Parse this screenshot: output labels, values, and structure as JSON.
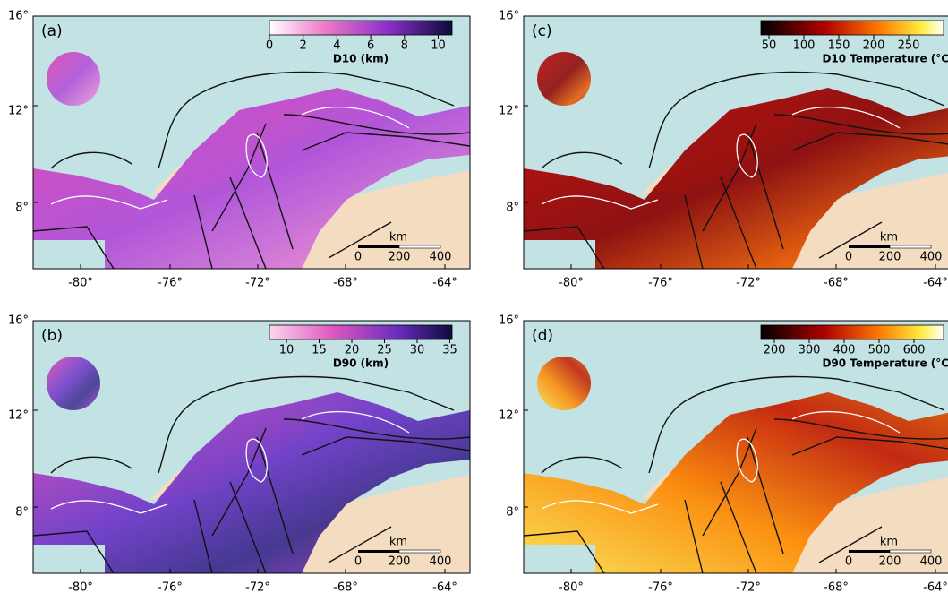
{
  "panels": [
    {
      "label": "(a)",
      "colorbar": {
        "title": "D10 (km)",
        "ticks": [
          "0",
          "2",
          "4",
          "6",
          "8",
          "10"
        ]
      },
      "lat_ticks": [
        "16°",
        "12°",
        "8°"
      ],
      "lon_ticks": [
        "-80°",
        "-76°",
        "-72°",
        "-68°",
        "-64°"
      ],
      "scale_bar": {
        "unit": "km",
        "ticks": [
          "0",
          "200",
          "400"
        ]
      }
    },
    {
      "label": "(b)",
      "colorbar": {
        "title": "D90 (km)",
        "ticks": [
          "10",
          "15",
          "20",
          "25",
          "30",
          "35"
        ]
      },
      "lat_ticks": [
        "16°",
        "12°",
        "8°"
      ],
      "lon_ticks": [
        "-80°",
        "-76°",
        "-72°",
        "-68°",
        "-64°"
      ],
      "scale_bar": {
        "unit": "km",
        "ticks": [
          "0",
          "200",
          "400"
        ]
      }
    },
    {
      "label": "(c)",
      "colorbar": {
        "title": "D10  Temperature (°C)",
        "ticks": [
          "50",
          "100",
          "150",
          "200",
          "250"
        ]
      },
      "lat_ticks": [
        "16°",
        "12°",
        "8°"
      ],
      "lon_ticks": [
        "-80°",
        "-76°",
        "-72°",
        "-68°",
        "-64°"
      ],
      "scale_bar": {
        "unit": "km",
        "ticks": [
          "0",
          "200",
          "400"
        ]
      }
    },
    {
      "label": "(d)",
      "colorbar": {
        "title": "D90  Temperature (°C)",
        "ticks": [
          "200",
          "300",
          "400",
          "500",
          "600"
        ]
      },
      "lat_ticks": [
        "16°",
        "12°",
        "8°"
      ],
      "lon_ticks": [
        "-80°",
        "-76°",
        "-72°",
        "-68°",
        "-64°"
      ],
      "scale_bar": {
        "unit": "km",
        "ticks": [
          "0",
          "200",
          "400"
        ]
      }
    }
  ]
}
